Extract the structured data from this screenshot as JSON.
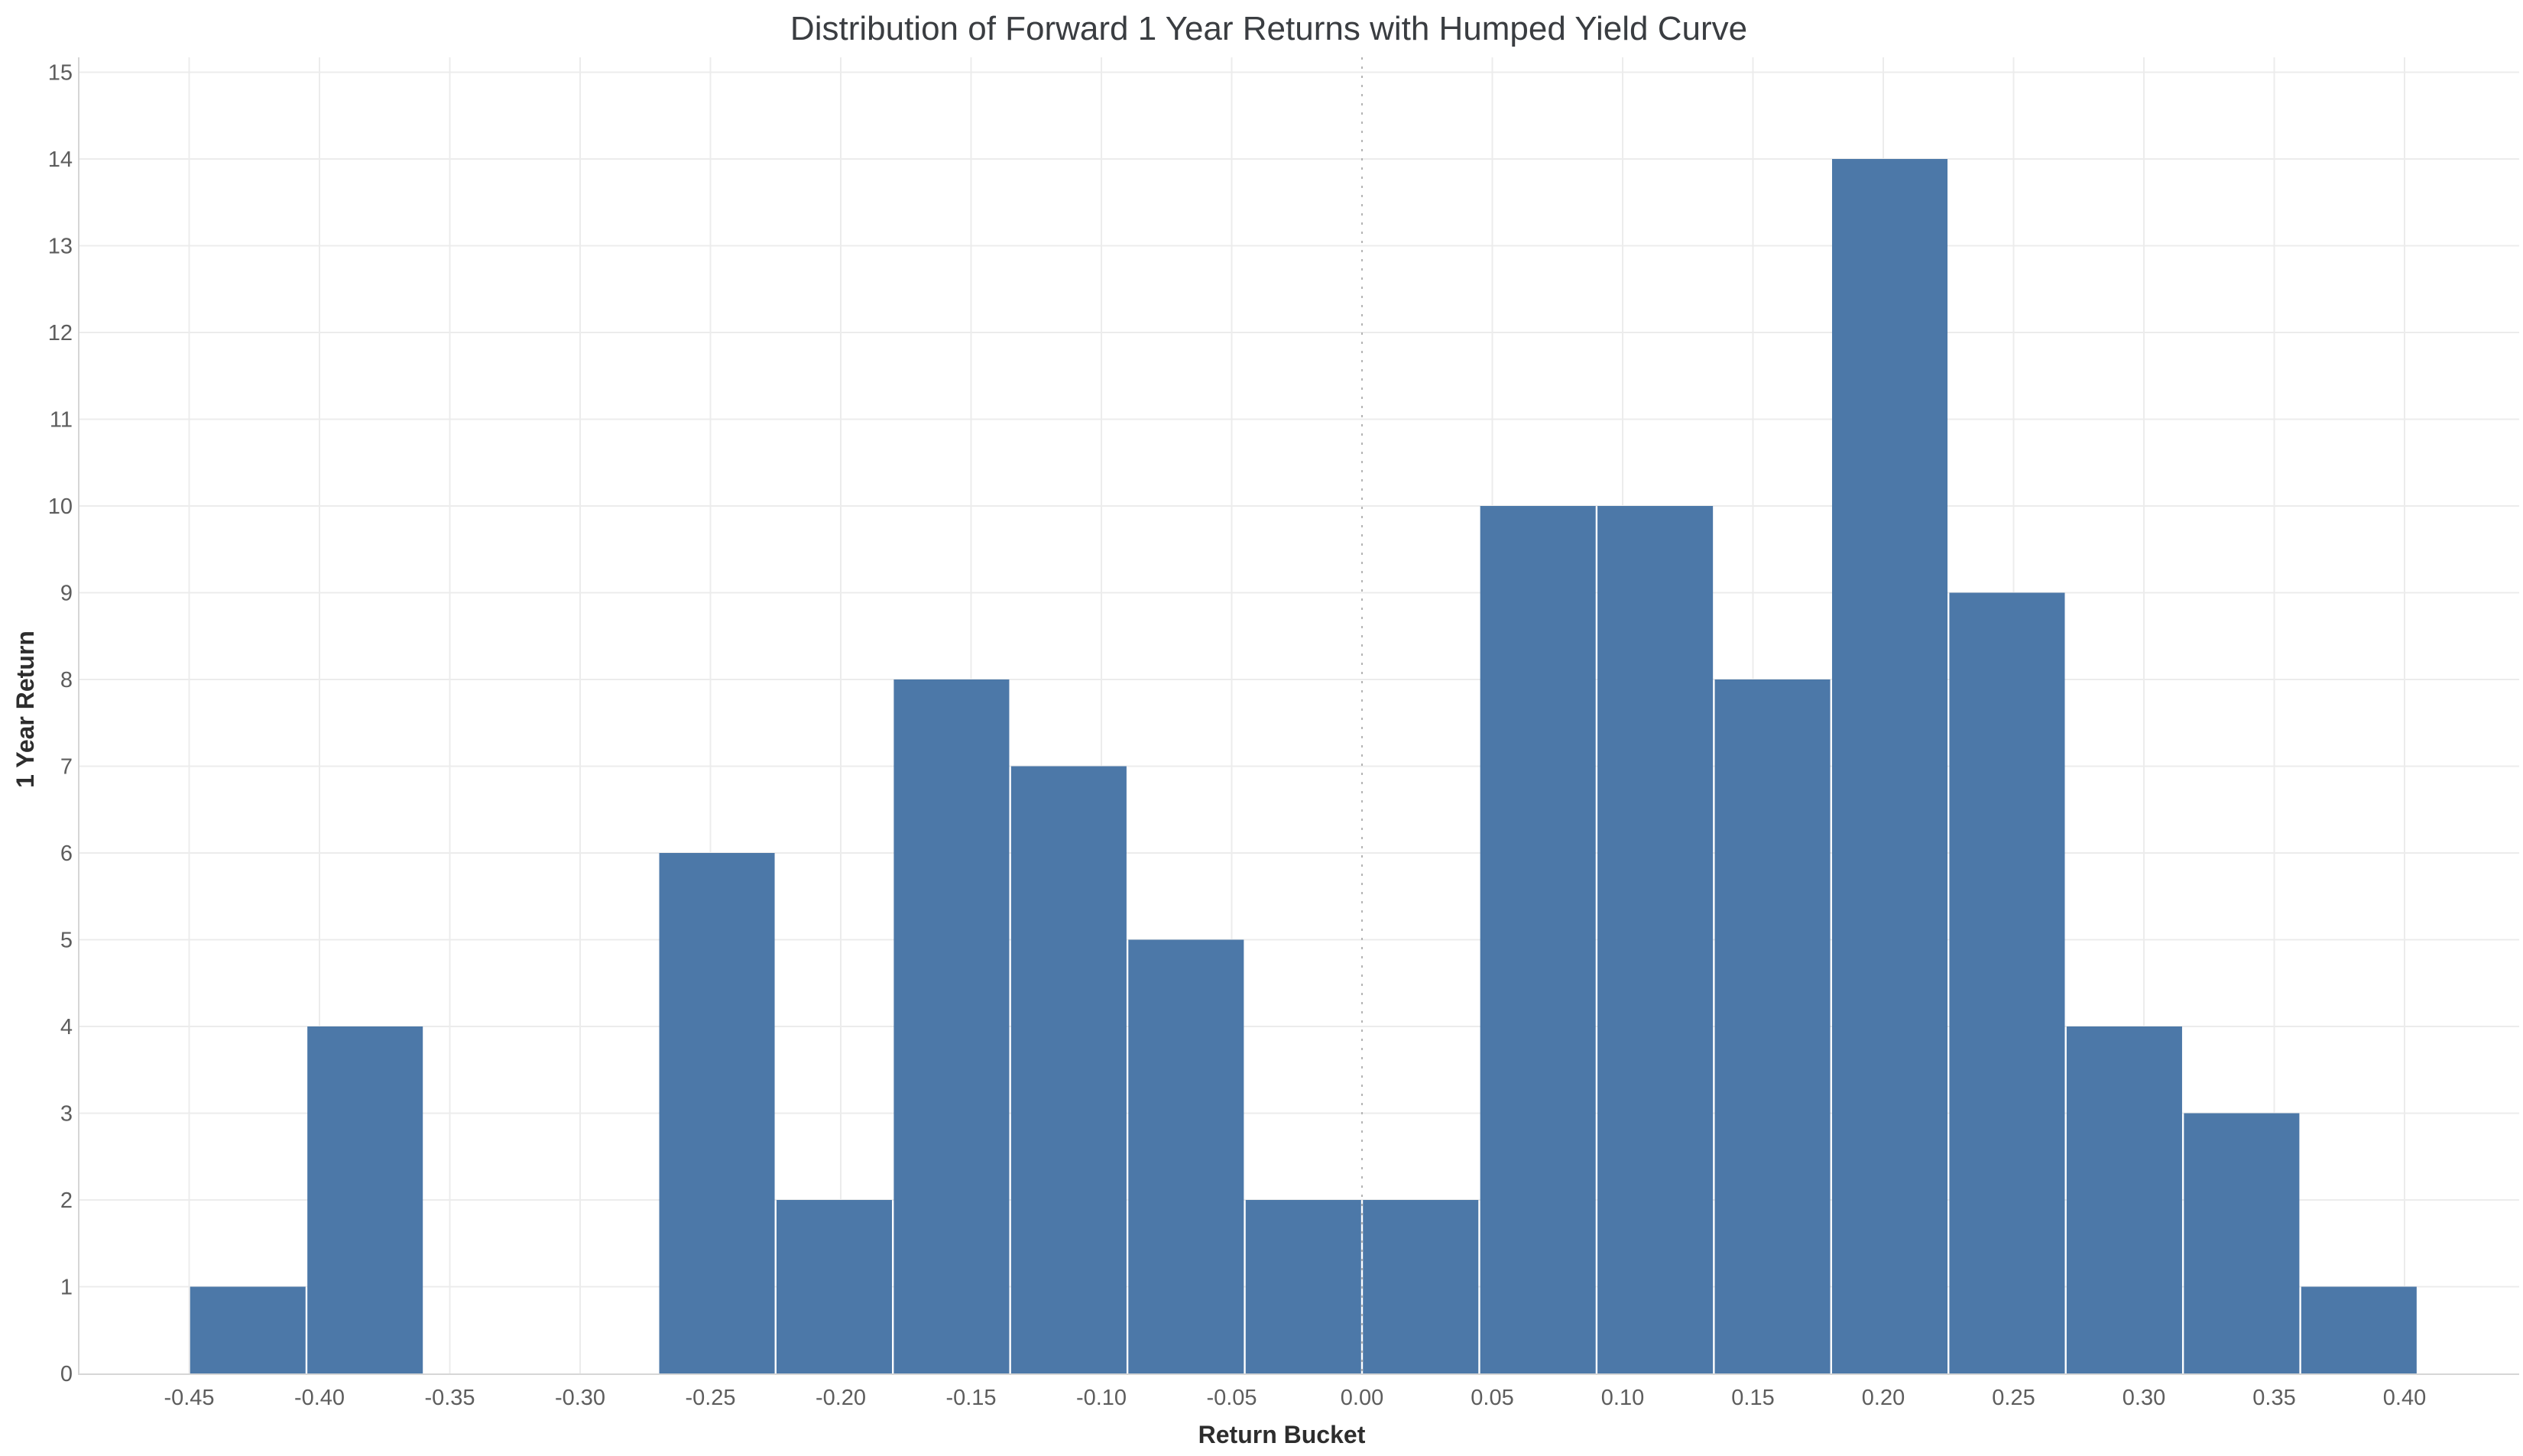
{
  "title": "Distribution of Forward 1 Year Returns with Humped Yield Curve",
  "colors": {
    "bar": "#4c78a8",
    "bar_separator": "#ffffff",
    "grid": "#ececec",
    "axis_line": "#d6d6d6",
    "zero_line": "#b4b4b4",
    "title_text": "#3a3d41",
    "axis_title_text": "#2d2d2d",
    "tick_text": "#5d5d5d",
    "background": "#ffffff"
  },
  "x_axis": {
    "label": "Return Bucket",
    "tick_labels": [
      "-0.45",
      "-0.40",
      "-0.35",
      "-0.30",
      "-0.25",
      "-0.20",
      "-0.15",
      "-0.10",
      "-0.05",
      "0.00",
      "0.05",
      "0.10",
      "0.15",
      "0.20",
      "0.25",
      "0.30",
      "0.35",
      "0.40"
    ],
    "tick_values": [
      -0.45,
      -0.4,
      -0.35,
      -0.3,
      -0.25,
      -0.2,
      -0.15,
      -0.1,
      -0.05,
      0.0,
      0.05,
      0.1,
      0.15,
      0.2,
      0.25,
      0.3,
      0.35,
      0.4
    ]
  },
  "y_axis": {
    "label": "1 Year Return",
    "tick_labels": [
      "0",
      "1",
      "2",
      "3",
      "4",
      "5",
      "6",
      "7",
      "8",
      "9",
      "10",
      "11",
      "12",
      "13",
      "14",
      "15"
    ],
    "tick_values": [
      0,
      1,
      2,
      3,
      4,
      5,
      6,
      7,
      8,
      9,
      10,
      11,
      12,
      13,
      14,
      15
    ]
  },
  "chart_data": {
    "type": "bar",
    "subtype": "histogram",
    "title": "Distribution of Forward 1 Year Returns with Humped Yield Curve",
    "xlabel": "Return Bucket",
    "ylabel": "1 Year Return",
    "bin_width": 0.045,
    "bin_starts": [
      -0.45,
      -0.405,
      -0.36,
      -0.315,
      -0.27,
      -0.225,
      -0.18,
      -0.135,
      -0.09,
      -0.045,
      0.0,
      0.045,
      0.09,
      0.135,
      0.18,
      0.225,
      0.27,
      0.315,
      0.36
    ],
    "counts": [
      1,
      4,
      0,
      0,
      6,
      2,
      8,
      7,
      5,
      2,
      2,
      10,
      10,
      8,
      14,
      9,
      4,
      3,
      1
    ],
    "total_observations": 96,
    "xlim": [
      -0.492,
      0.445
    ],
    "ylim": [
      0,
      15
    ],
    "x_tick_step": 0.05,
    "y_tick_step": 1,
    "grid": true,
    "legend": "none",
    "zero_reference_line_x": 0.0,
    "bar_color": "#4c78a8"
  }
}
